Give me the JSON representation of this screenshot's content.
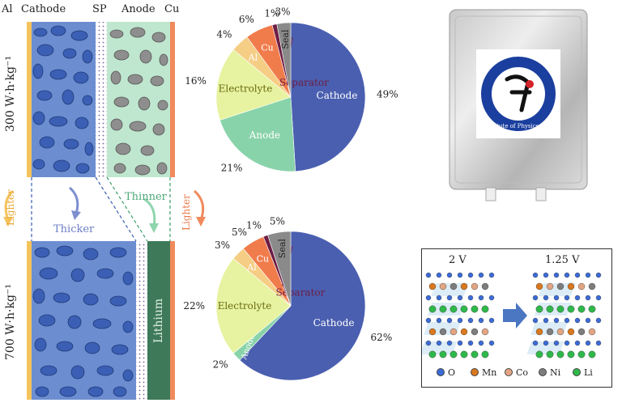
{
  "top_labels": {
    "al": "Al",
    "cathode": "Cathode",
    "sp": "SP",
    "anode": "Anode",
    "cu": "Cu"
  },
  "rows": [
    {
      "energy_label": "300 W·h·kg⁻¹"
    },
    {
      "energy_label": "700 W·h·kg⁻¹"
    }
  ],
  "arrows": {
    "lighter_left": "Lighter",
    "thicker": "Thicker",
    "thinner": "Thinner",
    "lighter_right": "Lighter"
  },
  "lithium_label": "Lithium",
  "logo_text": "Institute of Physics CAS",
  "crystal": {
    "voltage_left": "2 V",
    "voltage_right": "1.25 V",
    "legend": [
      {
        "label": "O",
        "color": "#3b6bd6"
      },
      {
        "label": "Mn",
        "color": "#d9781e"
      },
      {
        "label": "Co",
        "color": "#e2a583"
      },
      {
        "label": "Ni",
        "color": "#7d7d7d"
      },
      {
        "label": "Li",
        "color": "#2fb84a"
      }
    ]
  },
  "colors": {
    "cathode": "#4a5fb0",
    "electrolyte": "#e7f3a0",
    "anode": "#89d3aa",
    "al": "#f5cd84",
    "cu": "#f07c4c",
    "separator": "#6e1e44",
    "seal": "#8a8a8a"
  },
  "chart_data": [
    {
      "type": "pie",
      "title": "",
      "slices": [
        {
          "name": "Cathode",
          "value": 49,
          "label": "49%"
        },
        {
          "name": "Anode",
          "value": 21,
          "label": "21%"
        },
        {
          "name": "Electrolyte",
          "value": 16,
          "label": "16%"
        },
        {
          "name": "Al",
          "value": 4,
          "label": "4%"
        },
        {
          "name": "Cu",
          "value": 6,
          "label": "6%"
        },
        {
          "name": "Separator",
          "value": 1,
          "label": "1%"
        },
        {
          "name": "Seal",
          "value": 3,
          "label": "3%"
        }
      ]
    },
    {
      "type": "pie",
      "title": "",
      "slices": [
        {
          "name": "Cathode",
          "value": 62,
          "label": "62%"
        },
        {
          "name": "Anode",
          "value": 2,
          "label": "2%"
        },
        {
          "name": "Electrolyte",
          "value": 22,
          "label": "22%"
        },
        {
          "name": "Al",
          "value": 3,
          "label": "3%"
        },
        {
          "name": "Cu",
          "value": 5,
          "label": "5%"
        },
        {
          "name": "Separator",
          "value": 1,
          "label": "1%"
        },
        {
          "name": "Seal",
          "value": 5,
          "label": "5%"
        }
      ]
    }
  ]
}
